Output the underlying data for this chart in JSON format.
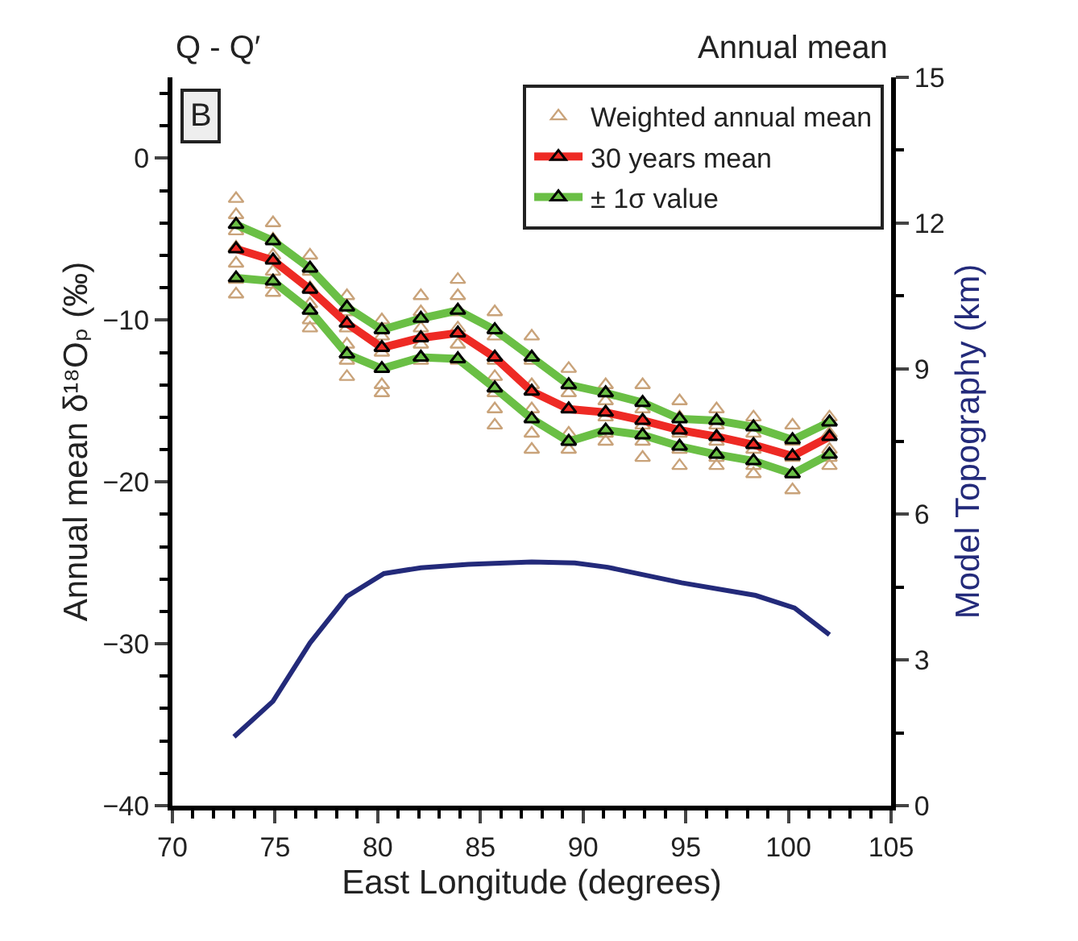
{
  "chart_data": {
    "type": "scatter",
    "xlabel": "East Longitude (degrees)",
    "ylabel": "Annual mean δ¹⁸Oₚ (‰)",
    "y2label": "Model Topography (km)",
    "annotations": [
      "Q - Q′",
      "Annual mean",
      "B"
    ],
    "xlim": [
      70,
      105
    ],
    "xticks": [
      70,
      75,
      80,
      85,
      90,
      95,
      100,
      105
    ],
    "ylim": [
      -40,
      5
    ],
    "yticks": [
      -40,
      -30,
      -20,
      -10,
      0
    ],
    "y2lim": [
      0,
      15
    ],
    "y2ticks": [
      0,
      3,
      6,
      9,
      12,
      15
    ],
    "legend": "top right",
    "grid": false,
    "series": [
      {
        "name": "Weighted annual mean",
        "type": "scatter",
        "marker": "triangle",
        "color": "#c9a37a",
        "x": [
          73.1,
          73.1,
          73.1,
          73.1,
          73.1,
          73.1,
          73.1,
          74.9,
          74.9,
          74.9,
          74.9,
          74.9,
          74.9,
          76.7,
          76.7,
          76.7,
          76.7,
          76.7,
          76.7,
          78.5,
          78.5,
          78.5,
          78.5,
          78.5,
          78.5,
          80.2,
          80.2,
          80.2,
          80.2,
          80.2,
          80.2,
          82.1,
          82.1,
          82.1,
          82.1,
          82.1,
          83.9,
          83.9,
          83.9,
          83.9,
          83.9,
          83.9,
          85.7,
          85.7,
          85.7,
          85.7,
          85.7,
          85.7,
          85.7,
          87.5,
          87.5,
          87.5,
          87.5,
          87.5,
          87.5,
          89.3,
          89.3,
          89.3,
          89.3,
          89.3,
          91.1,
          91.1,
          91.1,
          91.1,
          91.1,
          92.9,
          92.9,
          92.9,
          92.9,
          92.9,
          94.7,
          94.7,
          94.7,
          94.7,
          94.7,
          96.5,
          96.5,
          96.5,
          96.5,
          96.5,
          98.3,
          98.3,
          98.3,
          98.3,
          98.3,
          100.2,
          100.2,
          100.2,
          100.2,
          100.2,
          102.0,
          102.0,
          102.0,
          102.0,
          102.0
        ],
        "values": [
          -2.5,
          -3.5,
          -4.5,
          -5.5,
          -6.5,
          -7.5,
          -8.4,
          -4.0,
          -5.0,
          -6.0,
          -7.0,
          -7.8,
          -8.3,
          -6.0,
          -7.0,
          -8.0,
          -9.0,
          -10.0,
          -10.5,
          -8.5,
          -9.5,
          -10.5,
          -11.5,
          -12.5,
          -13.5,
          -10.0,
          -11.0,
          -12.0,
          -13.0,
          -14.0,
          -14.5,
          -8.5,
          -9.5,
          -10.5,
          -11.5,
          -12.5,
          -7.5,
          -8.5,
          -9.5,
          -10.5,
          -11.5,
          -12.5,
          -9.5,
          -11.0,
          -12.5,
          -13.5,
          -14.5,
          -15.5,
          -16.5,
          -11.0,
          -12.5,
          -14.0,
          -15.5,
          -17.0,
          -18.0,
          -13.0,
          -14.5,
          -15.5,
          -17.0,
          -18.0,
          -14.0,
          -15.0,
          -16.0,
          -17.0,
          -17.5,
          -14.0,
          -15.5,
          -16.5,
          -17.5,
          -18.5,
          -15.0,
          -16.0,
          -17.0,
          -18.0,
          -19.0,
          -15.5,
          -16.5,
          -17.5,
          -18.5,
          -19.0,
          -16.0,
          -17.0,
          -18.0,
          -19.0,
          -19.5,
          -16.5,
          -17.5,
          -18.5,
          -19.5,
          -20.5,
          -16.0,
          -17.0,
          -18.0,
          -18.5,
          -19.0
        ]
      },
      {
        "name": "30 years mean",
        "type": "line",
        "marker": "triangle",
        "color": "#ee2a24",
        "x": [
          73.1,
          74.9,
          76.7,
          78.5,
          80.2,
          82.1,
          83.9,
          85.7,
          87.5,
          89.3,
          91.1,
          92.9,
          94.7,
          96.5,
          98.3,
          100.2,
          102.0
        ],
        "values": [
          -5.6,
          -6.3,
          -8.1,
          -10.2,
          -11.7,
          -11.1,
          -10.8,
          -12.3,
          -14.4,
          -15.5,
          -15.7,
          -16.2,
          -16.8,
          -17.2,
          -17.7,
          -18.4,
          -17.2
        ]
      },
      {
        "name": "± 1σ value",
        "type": "line",
        "marker": "triangle",
        "color": "#6abf45",
        "x": [
          73.1,
          74.9,
          76.7,
          78.5,
          80.2,
          82.1,
          83.9,
          85.7,
          87.5,
          89.3,
          91.1,
          92.9,
          94.7,
          96.5,
          98.3,
          100.2,
          102.0
        ],
        "values": [
          -4.1,
          -5.1,
          -6.8,
          -9.2,
          -10.6,
          -9.9,
          -9.4,
          -10.6,
          -12.3,
          -14.0,
          -14.5,
          -15.1,
          -16.1,
          -16.2,
          -16.6,
          -17.4,
          -16.3
        ]
      },
      {
        "type": "line",
        "marker": "triangle",
        "color": "#6abf45",
        "x": [
          73.1,
          74.9,
          76.7,
          78.5,
          80.2,
          82.1,
          83.9,
          85.7,
          87.5,
          89.3,
          91.1,
          92.9,
          94.7,
          96.5,
          98.3,
          100.2,
          102.0
        ],
        "values": [
          -7.4,
          -7.6,
          -9.4,
          -12.1,
          -13.0,
          -12.3,
          -12.4,
          -14.2,
          -16.1,
          -17.5,
          -16.8,
          -17.1,
          -17.8,
          -18.3,
          -18.7,
          -19.5,
          -18.3
        ]
      },
      {
        "type": "line",
        "axis": "y2",
        "marker": "none",
        "color": "#232a7a",
        "x": [
          73.0,
          74.9,
          76.7,
          78.5,
          80.3,
          82.1,
          84.4,
          87.5,
          89.6,
          91.2,
          94.8,
          98.4,
          100.3,
          102.0
        ],
        "values": [
          1.42,
          2.15,
          3.35,
          4.31,
          4.78,
          4.9,
          4.97,
          5.02,
          5.0,
          4.91,
          4.59,
          4.33,
          4.07,
          3.52
        ]
      }
    ]
  }
}
